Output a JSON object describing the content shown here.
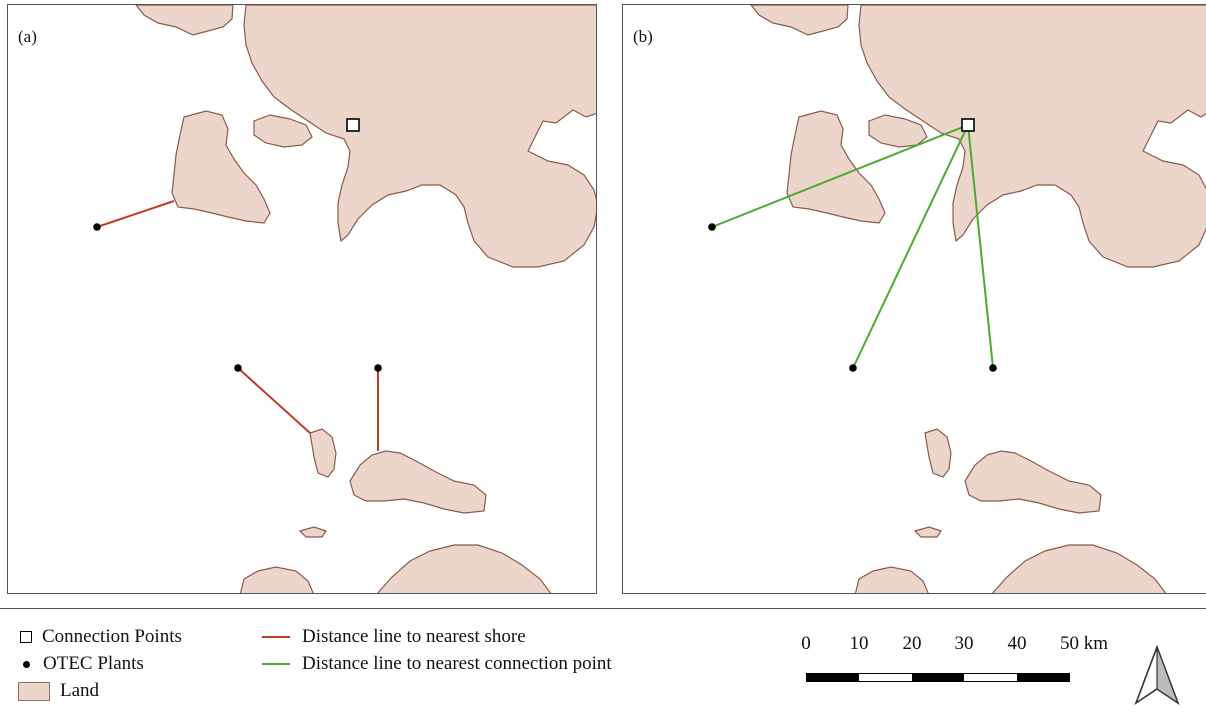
{
  "panels": [
    {
      "label": "(a)"
    },
    {
      "label": "(b)"
    }
  ],
  "legend": {
    "connection_points": "Connection Points",
    "otec_plants": "OTEC Plants",
    "land": "Land",
    "shore_line": "Distance line to nearest shore",
    "connection_line": "Distance line to nearest connection point"
  },
  "scale_bar": {
    "ticks": [
      "0",
      "10",
      "20",
      "30",
      "40",
      "50 km"
    ],
    "max_km": 50
  },
  "colors": {
    "land_fill": "#ecd6cc",
    "land_border": "#8b5a4a",
    "shore_line": "#c0392b",
    "connection_line": "#4daa2f"
  },
  "icons": {
    "connection_point": "hollow-square-icon",
    "otec_plant": "black-dot-icon",
    "north_arrow": "north-arrow-icon"
  }
}
